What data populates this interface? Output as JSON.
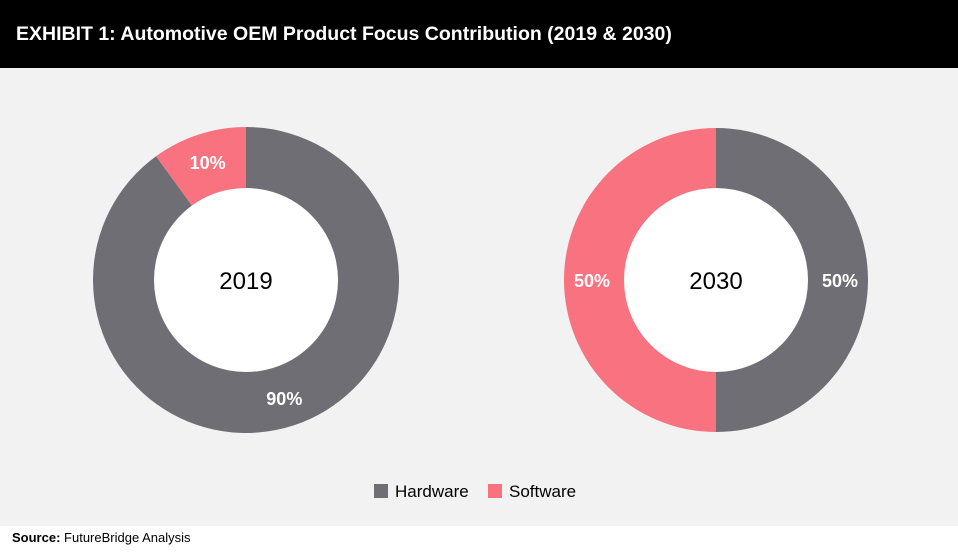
{
  "header": {
    "title": "EXHIBIT 1: Automotive OEM Product Focus Contribution (2019 & 2030)"
  },
  "source": {
    "label": "Source:",
    "text": "FutureBridge Analysis"
  },
  "colors": {
    "hardware": "#6f6e75",
    "software": "#f8737f",
    "hole": "#ffffff",
    "panel": "#f2f2f2"
  },
  "chart_data": [
    {
      "type": "pie",
      "variant": "donut",
      "center_label": "2019",
      "categories": [
        "Hardware",
        "Software"
      ],
      "values": [
        90,
        10
      ],
      "value_labels": [
        "90%",
        "10%"
      ]
    },
    {
      "type": "pie",
      "variant": "donut",
      "center_label": "2030",
      "categories": [
        "Hardware",
        "Software"
      ],
      "values": [
        50,
        50
      ],
      "value_labels": [
        "50%",
        "50%"
      ]
    }
  ],
  "legend": {
    "items": [
      "Hardware",
      "Software"
    ],
    "placement": "bottom-center"
  }
}
